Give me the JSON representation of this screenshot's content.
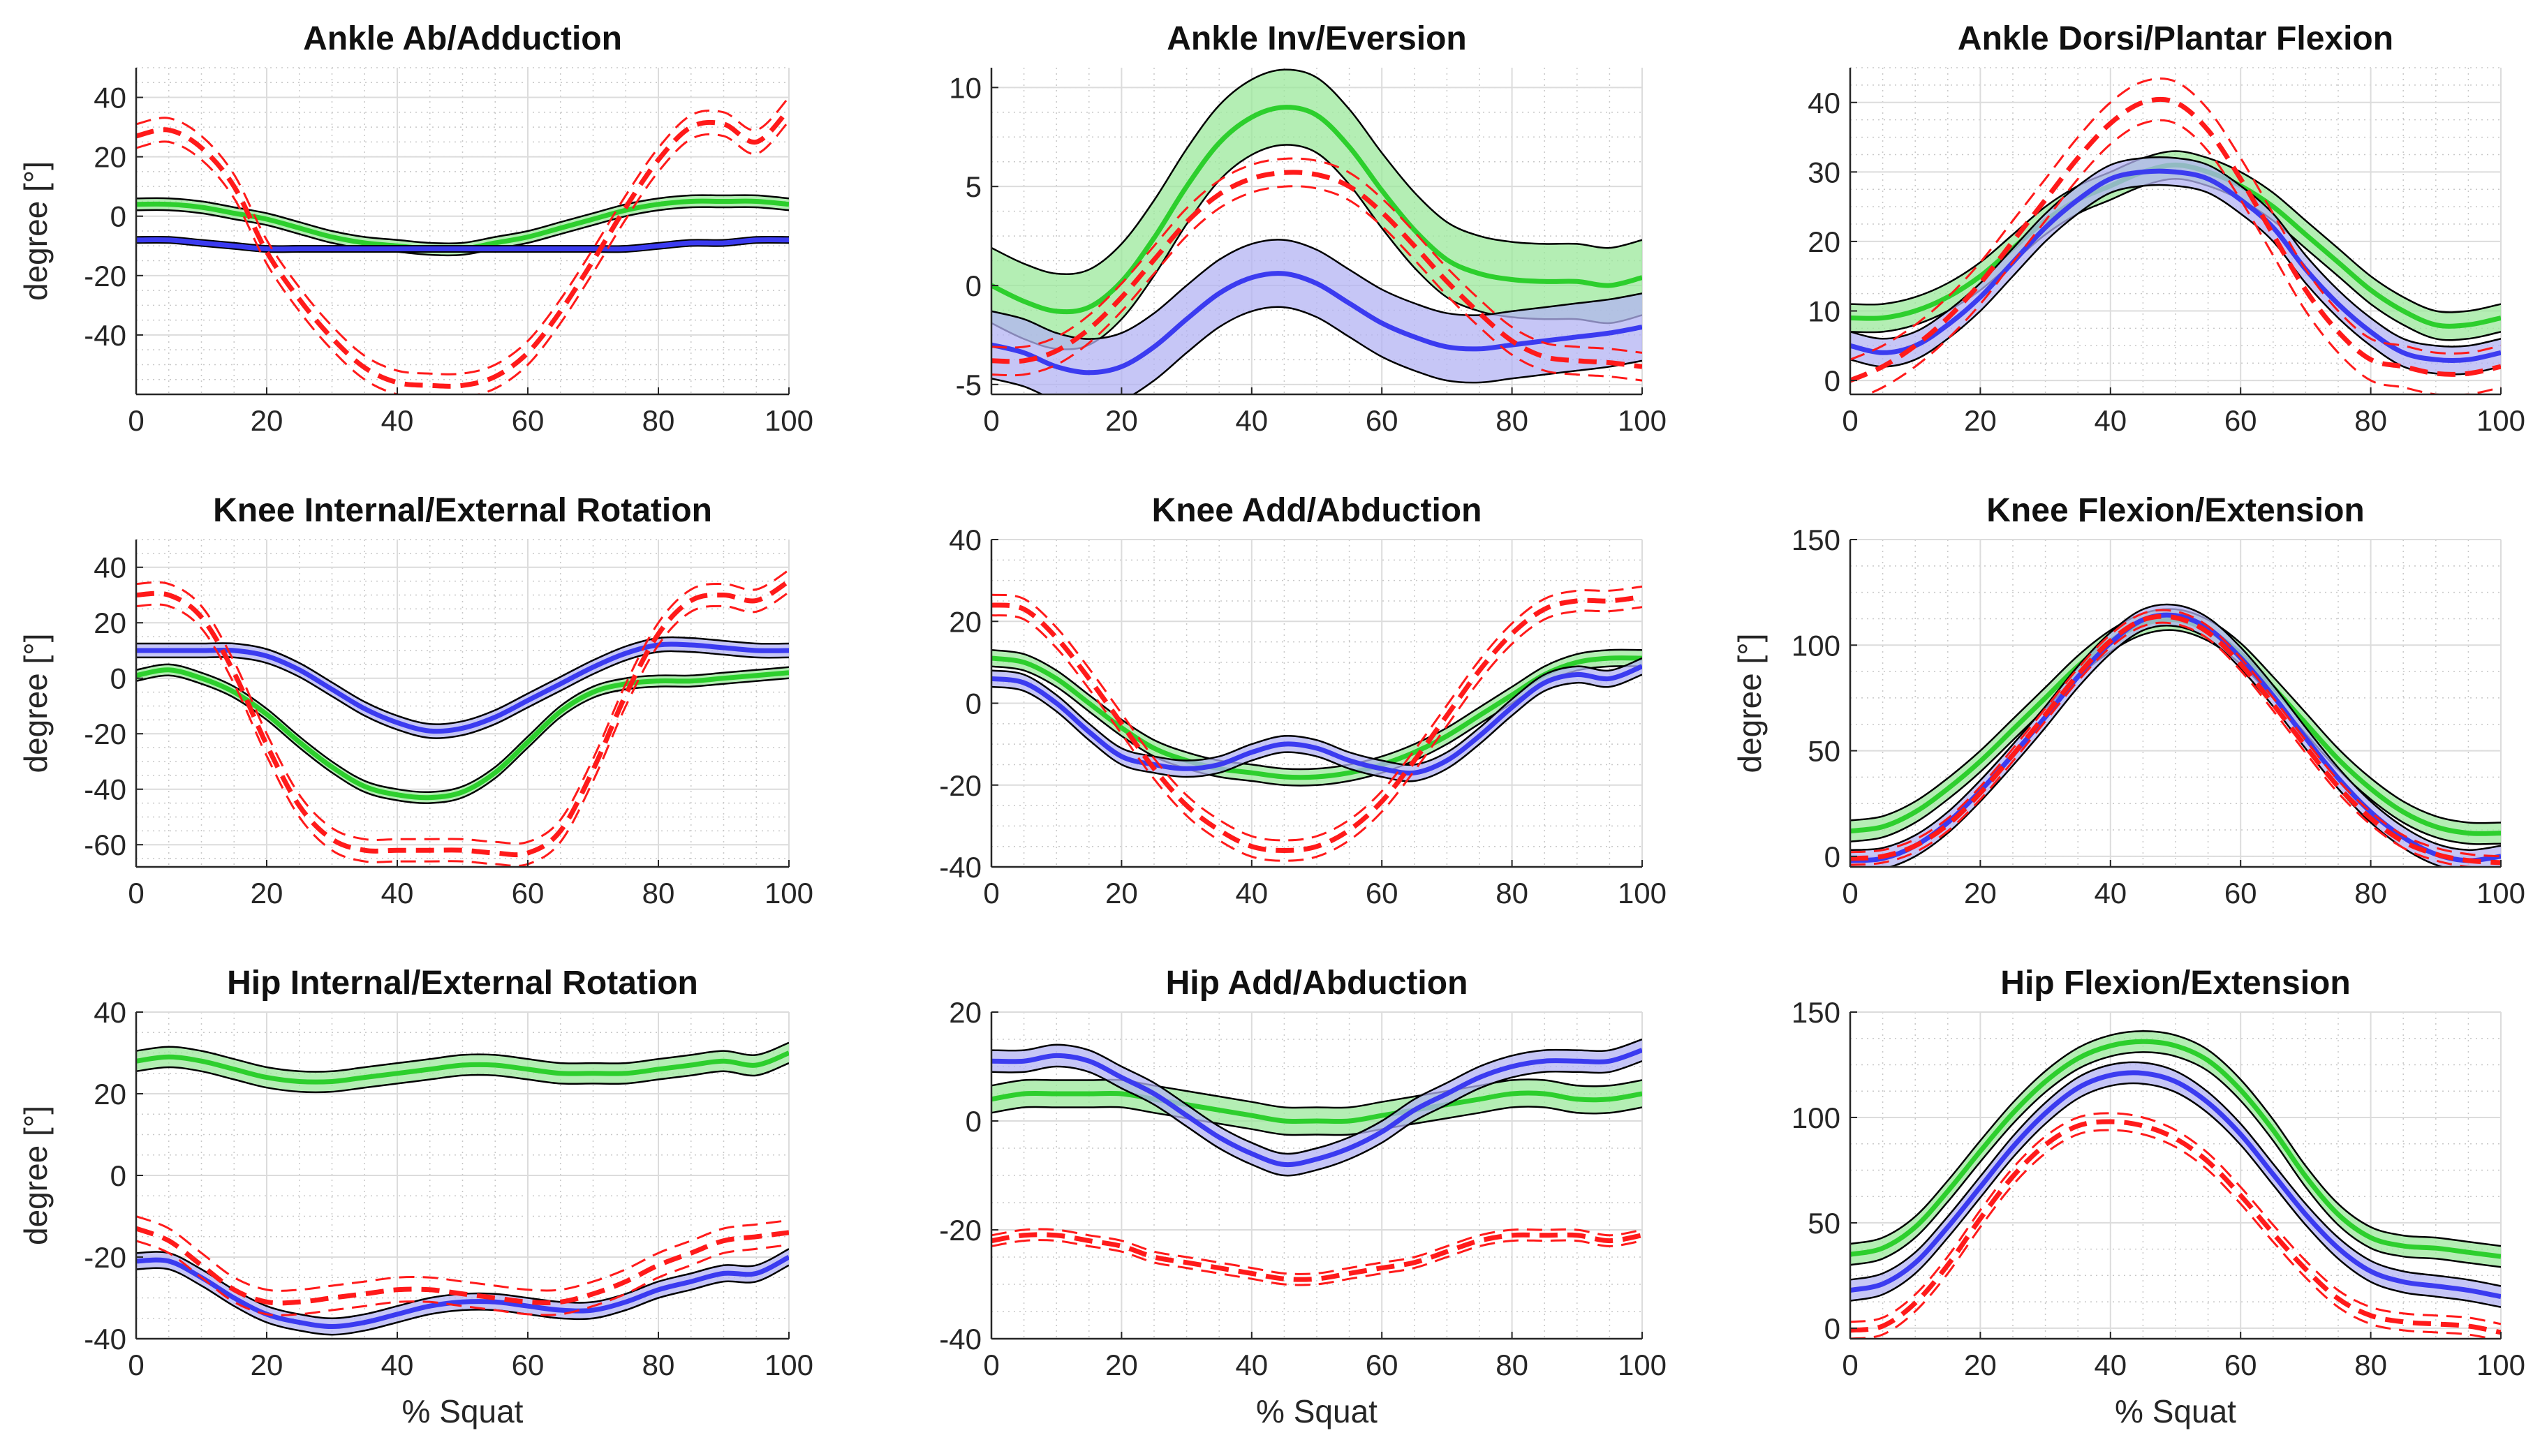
{
  "figure": {
    "x_label": "% Squat",
    "y_label": "degree [°]",
    "colors": {
      "green_line": "#2dcf2d",
      "green_fill": "#9be89b",
      "blue_line": "#3b3bf0",
      "blue_fill": "#b3b3f3",
      "red_line": "#ff1a1a",
      "border": "#000000"
    }
  },
  "chart_data": [
    {
      "type": "line",
      "title": "Ankle Ab/Adduction",
      "xlabel": "",
      "ylabel": "degree [°]",
      "xlim": [
        0,
        100
      ],
      "ylim": [
        -60,
        50
      ],
      "xticks": [
        "0",
        "20",
        "40",
        "60",
        "80",
        "100"
      ],
      "yticks": [
        "-40",
        "-20",
        "0",
        "20",
        "40"
      ],
      "x": [
        0,
        5,
        10,
        15,
        20,
        25,
        30,
        35,
        40,
        45,
        50,
        55,
        60,
        65,
        70,
        75,
        80,
        85,
        90,
        95,
        100
      ],
      "series": [
        {
          "name": "green",
          "values": [
            4,
            4,
            3,
            1,
            -1,
            -4,
            -7,
            -9,
            -10,
            -11,
            -11,
            -9,
            -7,
            -4,
            -1,
            2,
            4,
            5,
            5,
            5,
            4
          ],
          "band": 2
        },
        {
          "name": "blue",
          "values": [
            -8,
            -8,
            -9,
            -10,
            -11,
            -11,
            -11,
            -11,
            -11,
            -11,
            -11,
            -11,
            -11,
            -11,
            -11,
            -11,
            -10,
            -9,
            -9,
            -8,
            -8
          ],
          "band": 1
        },
        {
          "name": "red",
          "values": [
            27,
            29,
            23,
            10,
            -12,
            -28,
            -41,
            -51,
            -56,
            -57,
            -57,
            -54,
            -46,
            -32,
            -15,
            3,
            19,
            30,
            31,
            25,
            36
          ],
          "band": 4
        }
      ]
    },
    {
      "type": "line",
      "title": "Ankle Inv/Eversion",
      "xlabel": "",
      "ylabel": "",
      "xlim": [
        0,
        100
      ],
      "ylim": [
        -5.5,
        11
      ],
      "xticks": [
        "0",
        "20",
        "40",
        "60",
        "80",
        "100"
      ],
      "yticks": [
        "-5",
        "0",
        "5",
        "10"
      ],
      "x": [
        0,
        5,
        10,
        15,
        20,
        25,
        30,
        35,
        40,
        45,
        50,
        55,
        60,
        65,
        70,
        75,
        80,
        85,
        90,
        95,
        100
      ],
      "series": [
        {
          "name": "green",
          "values": [
            0,
            -0.8,
            -1.3,
            -1.1,
            0.2,
            2.4,
            5,
            7.2,
            8.5,
            9,
            8.6,
            7,
            4.8,
            2.8,
            1.3,
            0.6,
            0.3,
            0.2,
            0.2,
            0,
            0.4
          ],
          "band": 1.9
        },
        {
          "name": "blue",
          "values": [
            -3,
            -3.4,
            -4.1,
            -4.4,
            -4.1,
            -3.1,
            -1.7,
            -0.4,
            0.4,
            0.6,
            0.1,
            -0.9,
            -1.9,
            -2.6,
            -3.1,
            -3.2,
            -3,
            -2.8,
            -2.6,
            -2.4,
            -2.1
          ],
          "band": 1.7
        },
        {
          "name": "red",
          "values": [
            -3.8,
            -3.8,
            -3.3,
            -2.2,
            -0.6,
            1.3,
            3.2,
            4.6,
            5.4,
            5.7,
            5.6,
            5,
            3.7,
            2,
            0.2,
            -1.4,
            -2.8,
            -3.6,
            -3.8,
            -3.9,
            -4.1
          ],
          "band": 0.7
        }
      ]
    },
    {
      "type": "line",
      "title": "Ankle Dorsi/Plantar Flexion",
      "xlabel": "",
      "ylabel": "",
      "xlim": [
        0,
        100
      ],
      "ylim": [
        -2,
        45
      ],
      "xticks": [
        "0",
        "20",
        "40",
        "60",
        "80",
        "100"
      ],
      "yticks": [
        "0",
        "10",
        "20",
        "30",
        "40"
      ],
      "x": [
        0,
        5,
        10,
        15,
        20,
        25,
        30,
        35,
        40,
        45,
        50,
        55,
        60,
        65,
        70,
        75,
        80,
        85,
        90,
        95,
        100
      ],
      "series": [
        {
          "name": "green",
          "values": [
            9,
            9,
            10,
            12,
            15,
            19,
            23,
            26,
            28,
            30,
            31,
            30,
            28,
            25,
            21,
            17,
            13,
            10,
            8,
            8,
            9
          ],
          "band": 2
        },
        {
          "name": "blue",
          "values": [
            5,
            4,
            5,
            8,
            12,
            17,
            22,
            26,
            29,
            30,
            30,
            29,
            26,
            22,
            16,
            11,
            7,
            4,
            3,
            3,
            4
          ],
          "band": 2
        },
        {
          "name": "red",
          "values": [
            0,
            2,
            5,
            9,
            14,
            20,
            26,
            32,
            37,
            40,
            40,
            36,
            29,
            21,
            13,
            7,
            3,
            2,
            1,
            1,
            2
          ],
          "band": 3
        }
      ]
    },
    {
      "type": "line",
      "title": "Knee Internal/External Rotation",
      "xlabel": "",
      "ylabel": "degree [°]",
      "xlim": [
        0,
        100
      ],
      "ylim": [
        -68,
        50
      ],
      "xticks": [
        "0",
        "20",
        "40",
        "60",
        "80",
        "100"
      ],
      "yticks": [
        "-60",
        "-40",
        "-20",
        "0",
        "20",
        "40"
      ],
      "x": [
        0,
        5,
        10,
        15,
        20,
        25,
        30,
        35,
        40,
        45,
        50,
        55,
        60,
        65,
        70,
        75,
        80,
        85,
        90,
        95,
        100
      ],
      "series": [
        {
          "name": "green",
          "values": [
            1,
            3,
            0,
            -5,
            -13,
            -23,
            -32,
            -39,
            -42,
            -43,
            -41,
            -34,
            -23,
            -12,
            -5,
            -2,
            -1,
            -1,
            0,
            1,
            2
          ],
          "band": 2
        },
        {
          "name": "blue",
          "values": [
            10,
            10,
            10,
            10,
            8,
            3,
            -4,
            -11,
            -16,
            -19,
            -18,
            -14,
            -8,
            -2,
            4,
            9,
            12,
            12,
            11,
            10,
            10
          ],
          "band": 2.5
        },
        {
          "name": "red",
          "values": [
            30,
            30,
            22,
            2,
            -24,
            -46,
            -58,
            -62,
            -62,
            -62,
            -62,
            -63,
            -63,
            -55,
            -33,
            -6,
            16,
            28,
            30,
            28,
            35
          ],
          "band": 4
        }
      ]
    },
    {
      "type": "line",
      "title": "Knee Add/Abduction",
      "xlabel": "",
      "ylabel": "",
      "xlim": [
        0,
        100
      ],
      "ylim": [
        -40,
        40
      ],
      "xticks": [
        "0",
        "20",
        "40",
        "60",
        "80",
        "100"
      ],
      "yticks": [
        "-40",
        "-20",
        "0",
        "20",
        "40"
      ],
      "x": [
        0,
        5,
        10,
        15,
        20,
        25,
        30,
        35,
        40,
        45,
        50,
        55,
        60,
        65,
        70,
        75,
        80,
        85,
        90,
        95,
        100
      ],
      "series": [
        {
          "name": "green",
          "values": [
            11,
            10,
            6,
            0,
            -6,
            -11,
            -14,
            -16,
            -17,
            -18,
            -18,
            -17,
            -15,
            -12,
            -8,
            -3,
            2,
            7,
            10,
            11,
            11
          ],
          "band": 2
        },
        {
          "name": "blue",
          "values": [
            6,
            5,
            0,
            -7,
            -13,
            -15,
            -16,
            -15,
            -12,
            -10,
            -11,
            -14,
            -16,
            -17,
            -14,
            -8,
            -1,
            5,
            7,
            6,
            9
          ],
          "band": 2
        },
        {
          "name": "red",
          "values": [
            24,
            23,
            16,
            6,
            -5,
            -16,
            -25,
            -31,
            -35,
            -36,
            -35,
            -31,
            -24,
            -14,
            -3,
            8,
            17,
            23,
            25,
            25,
            26
          ],
          "band": 2.5
        }
      ]
    },
    {
      "type": "line",
      "title": "Knee Flexion/Extension",
      "xlabel": "",
      "ylabel": "degree [°]",
      "xlim": [
        0,
        100
      ],
      "ylim": [
        -5,
        150
      ],
      "xticks": [
        "0",
        "20",
        "40",
        "60",
        "80",
        "100"
      ],
      "yticks": [
        "0",
        "50",
        "100",
        "150"
      ],
      "x": [
        0,
        5,
        10,
        15,
        20,
        25,
        30,
        35,
        40,
        45,
        50,
        55,
        60,
        65,
        70,
        75,
        80,
        85,
        90,
        95,
        100
      ],
      "series": [
        {
          "name": "green",
          "values": [
            12,
            14,
            21,
            32,
            45,
            60,
            75,
            90,
            102,
            110,
            112,
            107,
            96,
            80,
            63,
            46,
            32,
            21,
            14,
            11,
            11
          ],
          "band": 5
        },
        {
          "name": "blue",
          "values": [
            -2,
            -1,
            5,
            16,
            31,
            48,
            66,
            85,
            101,
            112,
            114,
            108,
            94,
            76,
            56,
            37,
            21,
            9,
            1,
            -2,
            0
          ],
          "band": 5
        },
        {
          "name": "red",
          "values": [
            -1,
            0,
            5,
            15,
            30,
            48,
            67,
            86,
            102,
            112,
            113,
            106,
            91,
            72,
            52,
            33,
            18,
            7,
            1,
            -2,
            -3
          ],
          "band": 3
        }
      ]
    },
    {
      "type": "line",
      "title": "Hip Internal/External Rotation",
      "xlabel": "% Squat",
      "ylabel": "degree [°]",
      "xlim": [
        0,
        100
      ],
      "ylim": [
        -40,
        40
      ],
      "xticks": [
        "0",
        "20",
        "40",
        "60",
        "80",
        "100"
      ],
      "yticks": [
        "-40",
        "-20",
        "0",
        "20",
        "40"
      ],
      "x": [
        0,
        5,
        10,
        15,
        20,
        25,
        30,
        35,
        40,
        45,
        50,
        55,
        60,
        65,
        70,
        75,
        80,
        85,
        90,
        95,
        100
      ],
      "series": [
        {
          "name": "green",
          "values": [
            28,
            29,
            28,
            26,
            24,
            23,
            23,
            24,
            25,
            26,
            27,
            27,
            26,
            25,
            25,
            25,
            26,
            27,
            28,
            27,
            30
          ],
          "band": 2.5
        },
        {
          "name": "blue",
          "values": [
            -21,
            -21,
            -25,
            -30,
            -34,
            -36,
            -37,
            -36,
            -34,
            -32,
            -31,
            -31,
            -32,
            -33,
            -33,
            -31,
            -28,
            -26,
            -24,
            -24,
            -20
          ],
          "band": 2
        },
        {
          "name": "red",
          "values": [
            -13,
            -16,
            -22,
            -28,
            -31,
            -31,
            -30,
            -29,
            -28,
            -28,
            -29,
            -30,
            -31,
            -31,
            -29,
            -26,
            -22,
            -19,
            -16,
            -15,
            -14
          ],
          "band": 3
        }
      ]
    },
    {
      "type": "line",
      "title": "Hip Add/Abduction",
      "xlabel": "% Squat",
      "ylabel": "",
      "xlim": [
        0,
        100
      ],
      "ylim": [
        -40,
        20
      ],
      "xticks": [
        "0",
        "20",
        "40",
        "60",
        "80",
        "100"
      ],
      "yticks": [
        "-40",
        "-20",
        "0",
        "20"
      ],
      "x": [
        0,
        5,
        10,
        15,
        20,
        25,
        30,
        35,
        40,
        45,
        50,
        55,
        60,
        65,
        70,
        75,
        80,
        85,
        90,
        95,
        100
      ],
      "series": [
        {
          "name": "green",
          "values": [
            4,
            5,
            5,
            5,
            5,
            4,
            3,
            2,
            1,
            0,
            0,
            0,
            1,
            2,
            3,
            4,
            5,
            5,
            4,
            4,
            5
          ],
          "band": 2.5
        },
        {
          "name": "blue",
          "values": [
            11,
            11,
            12,
            11,
            8,
            5,
            1,
            -3,
            -6,
            -8,
            -7,
            -5,
            -2,
            2,
            5,
            8,
            10,
            11,
            11,
            11,
            13
          ],
          "band": 2
        },
        {
          "name": "red",
          "values": [
            -22,
            -21,
            -21,
            -22,
            -23,
            -25,
            -26,
            -27,
            -28,
            -29,
            -29,
            -28,
            -27,
            -26,
            -24,
            -22,
            -21,
            -21,
            -21,
            -22,
            -21
          ],
          "band": 1
        }
      ]
    },
    {
      "type": "line",
      "title": "Hip Flexion/Extension",
      "xlabel": "% Squat",
      "ylabel": "",
      "xlim": [
        0,
        100
      ],
      "ylim": [
        -5,
        150
      ],
      "xticks": [
        "0",
        "20",
        "40",
        "60",
        "80",
        "100"
      ],
      "yticks": [
        "0",
        "50",
        "100",
        "150"
      ],
      "x": [
        0,
        5,
        10,
        15,
        20,
        25,
        30,
        35,
        40,
        45,
        50,
        55,
        60,
        65,
        70,
        75,
        80,
        85,
        90,
        95,
        100
      ],
      "series": [
        {
          "name": "green",
          "values": [
            35,
            38,
            48,
            65,
            84,
            102,
            117,
            128,
            134,
            136,
            134,
            127,
            113,
            94,
            72,
            54,
            43,
            39,
            38,
            36,
            34
          ],
          "band": 5
        },
        {
          "name": "blue",
          "values": [
            18,
            21,
            31,
            48,
            67,
            86,
            102,
            114,
            120,
            121,
            117,
            107,
            92,
            73,
            54,
            38,
            27,
            22,
            20,
            18,
            15
          ],
          "band": 5
        },
        {
          "name": "red",
          "values": [
            -1,
            1,
            12,
            30,
            52,
            72,
            87,
            96,
            98,
            96,
            90,
            79,
            63,
            45,
            28,
            14,
            6,
            3,
            2,
            1,
            -2
          ],
          "band": 4
        }
      ]
    }
  ]
}
